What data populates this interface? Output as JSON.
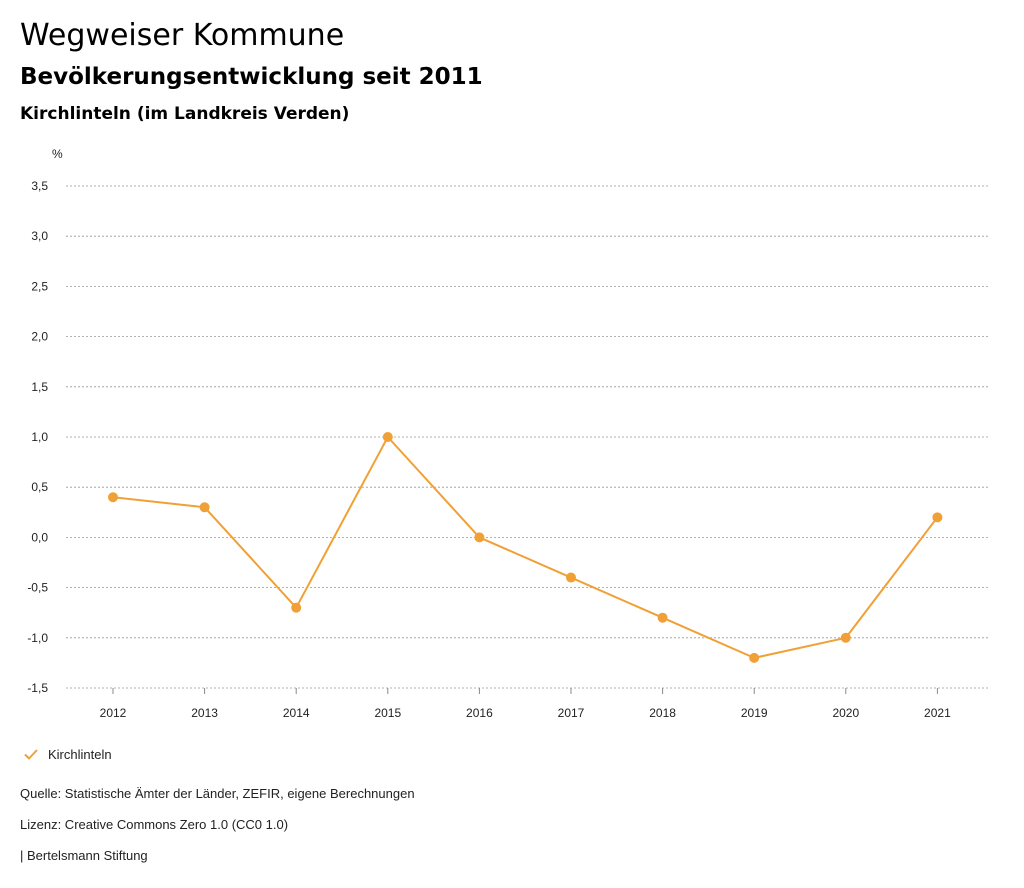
{
  "header": {
    "title": "Wegweiser Kommune",
    "subtitle": "Bevölkerungsentwicklung seit 2011",
    "region": "Kirchlinteln (im Landkreis Verden)"
  },
  "colors": {
    "series": "#f0a035",
    "grid": "#999999"
  },
  "legend": {
    "label": "Kirchlinteln"
  },
  "footer": {
    "source": "Quelle: Statistische Ämter der Länder, ZEFIR, eigene Berechnungen",
    "license": "Lizenz: Creative Commons Zero 1.0 (CC0 1.0)",
    "publisher": "| Bertelsmann Stiftung"
  },
  "chart_data": {
    "type": "line",
    "title": "Bevölkerungsentwicklung seit 2011",
    "xlabel": "",
    "ylabel": "%",
    "categories": [
      "2012",
      "2013",
      "2014",
      "2015",
      "2016",
      "2017",
      "2018",
      "2019",
      "2020",
      "2021"
    ],
    "series": [
      {
        "name": "Kirchlinteln",
        "values": [
          0.4,
          0.3,
          -0.7,
          1.0,
          0.0,
          -0.4,
          -0.8,
          -1.2,
          -1.0,
          0.2
        ]
      }
    ],
    "ylim": [
      -1.5,
      3.5
    ],
    "yticks": [
      3.5,
      3.0,
      2.5,
      2.0,
      1.5,
      1.0,
      0.5,
      0.0,
      -0.5,
      -1.0,
      -1.5
    ],
    "ytick_labels": [
      "3,5",
      "3,0",
      "2,5",
      "2,0",
      "1,5",
      "1,0",
      "0,5",
      "0,0",
      "-0,5",
      "-1,0",
      "-1,5"
    ],
    "grid": true,
    "legend_position": "bottom-left"
  }
}
